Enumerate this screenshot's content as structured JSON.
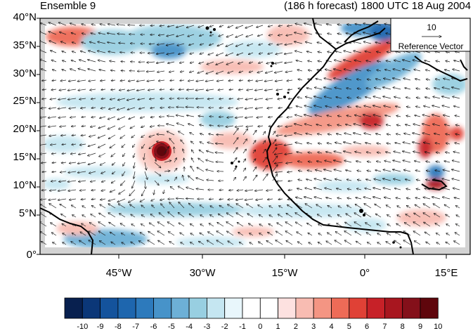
{
  "titles": {
    "left": "Ensemble 9",
    "right": "(186 h forecast) 1800 UTC 18 Aug 2004"
  },
  "map": {
    "lat_labels": [
      "40°N",
      "35°N",
      "30°N",
      "25°N",
      "20°N",
      "15°N",
      "10°N",
      "5°N",
      "0°"
    ],
    "lon_labels": [
      "45°W",
      "30°W",
      "15°W",
      "0°",
      "15°E"
    ],
    "lat_range": [
      0,
      40
    ],
    "lon_range": [
      -60,
      20
    ]
  },
  "reference_vector": {
    "magnitude": "10",
    "label": "Reference Vector"
  },
  "colorbar": {
    "labels": [
      "-10",
      "-9",
      "-8",
      "-7",
      "-6",
      "-5",
      "-4",
      "-3",
      "-2",
      "-1",
      "0",
      "1",
      "2",
      "3",
      "4",
      "5",
      "6",
      "7",
      "8",
      "9",
      "10"
    ],
    "colors": [
      "#08204f",
      "#0b3778",
      "#14539c",
      "#1e66ae",
      "#2d7abc",
      "#4793c9",
      "#6db0d6",
      "#98cfe1",
      "#c5e6f1",
      "#e8f6fb",
      "#ffffff",
      "#ffffff",
      "#fde1e0",
      "#f8bcb2",
      "#f49583",
      "#ee6b57",
      "#e04136",
      "#c72128",
      "#a8161f",
      "#84101a",
      "#5f060c"
    ]
  }
}
